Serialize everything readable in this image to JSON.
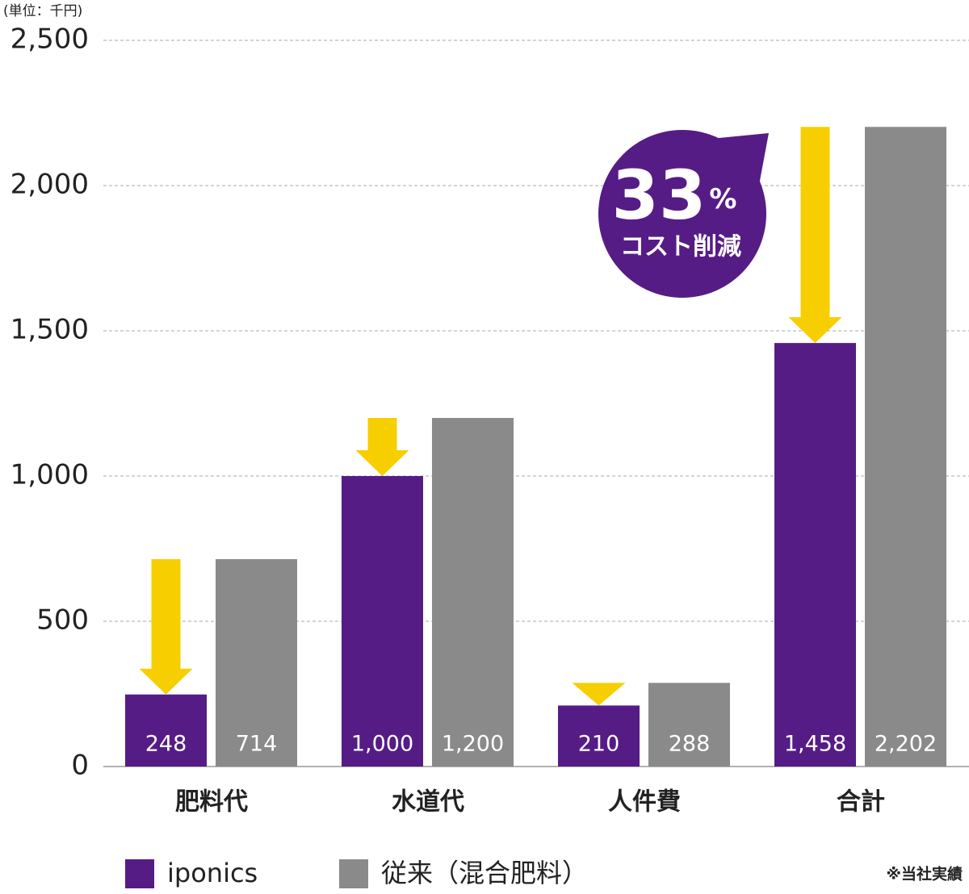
{
  "chart_data": {
    "type": "bar",
    "unit_label": "(単位：千円)",
    "categories": [
      "肥料代",
      "水道代",
      "人件費",
      "合計"
    ],
    "series": [
      {
        "name": "iponics",
        "color": "#561c86",
        "values": [
          248,
          1000,
          210,
          1458
        ],
        "value_labels": [
          "248",
          "1,000",
          "210",
          "1,458"
        ]
      },
      {
        "name": "従来（混合肥料）",
        "color": "#8a8a8a",
        "values": [
          714,
          1200,
          288,
          2202
        ],
        "value_labels": [
          "714",
          "1,200",
          "288",
          "2,202"
        ]
      }
    ],
    "ylim": [
      0,
      2500
    ],
    "yticks": [
      0,
      500,
      {
        "value": 1000,
        "label": "1,000"
      },
      {
        "value": 1500,
        "label": "1,500"
      },
      {
        "value": 2000,
        "label": "2,000"
      },
      {
        "value": 2500,
        "label": "2,500"
      }
    ],
    "grid": true,
    "arrow_color": "#f7cf00",
    "badge": {
      "value": "33",
      "unit": "%",
      "text": "コスト削減",
      "color": "#561c86"
    },
    "footnote": "※当社実績"
  }
}
